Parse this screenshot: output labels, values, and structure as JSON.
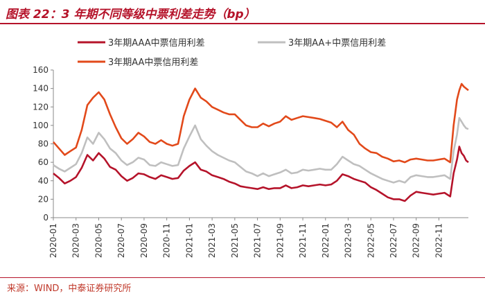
{
  "page": {
    "title": "图表 22：3 年期不同等级中票利差走势（bp）",
    "source": "来源：WIND，中泰证券研究所"
  },
  "colors": {
    "aaa": "#b5132a",
    "aa_plus": "#bfbfbf",
    "aa": "#e2491a",
    "accent": "#b5132a"
  },
  "chart_data": {
    "type": "line",
    "title": "3 年期不同等级中票利差走势（bp）",
    "xlabel": "",
    "ylabel": "",
    "ylim": [
      0,
      160
    ],
    "yticks": [
      0,
      20,
      40,
      60,
      80,
      100,
      120,
      140,
      160
    ],
    "xticks": [
      "2020-01",
      "2020-03",
      "2020-05",
      "2020-07",
      "2020-09",
      "2020-11",
      "2021-01",
      "2021-03",
      "2021-05",
      "2021-07",
      "2021-09",
      "2021-11",
      "2022-01",
      "2022-03",
      "2022-05",
      "2022-07",
      "2022-09",
      "2022-11"
    ],
    "xlim": [
      0,
      36.6
    ],
    "x_unit": "months since 2020-01",
    "legend": "top",
    "series": [
      {
        "name": "3年期AAA中票信用利差",
        "color_key": "aaa",
        "points": [
          [
            0,
            48
          ],
          [
            0.5,
            43
          ],
          [
            1,
            37
          ],
          [
            1.5,
            40
          ],
          [
            2,
            44
          ],
          [
            2.5,
            54
          ],
          [
            3,
            68
          ],
          [
            3.5,
            62
          ],
          [
            4,
            70
          ],
          [
            4.5,
            64
          ],
          [
            5,
            55
          ],
          [
            5.5,
            52
          ],
          [
            6,
            45
          ],
          [
            6.5,
            40
          ],
          [
            7,
            43
          ],
          [
            7.5,
            48
          ],
          [
            8,
            47
          ],
          [
            8.5,
            44
          ],
          [
            9,
            42
          ],
          [
            9.5,
            46
          ],
          [
            10,
            44
          ],
          [
            10.5,
            42
          ],
          [
            11,
            43
          ],
          [
            11.5,
            51
          ],
          [
            12,
            56
          ],
          [
            12.5,
            60
          ],
          [
            13,
            52
          ],
          [
            13.5,
            50
          ],
          [
            14,
            46
          ],
          [
            14.5,
            44
          ],
          [
            15,
            42
          ],
          [
            15.5,
            39
          ],
          [
            16,
            37
          ],
          [
            16.5,
            34
          ],
          [
            17,
            33
          ],
          [
            17.5,
            32
          ],
          [
            18,
            31
          ],
          [
            18.5,
            33
          ],
          [
            19,
            31
          ],
          [
            19.5,
            32
          ],
          [
            20,
            32
          ],
          [
            20.5,
            35
          ],
          [
            21,
            32
          ],
          [
            21.5,
            33
          ],
          [
            22,
            35
          ],
          [
            22.5,
            34
          ],
          [
            23,
            35
          ],
          [
            23.5,
            36
          ],
          [
            24,
            35
          ],
          [
            24.5,
            36
          ],
          [
            25,
            40
          ],
          [
            25.5,
            47
          ],
          [
            26,
            45
          ],
          [
            26.5,
            42
          ],
          [
            27,
            40
          ],
          [
            27.5,
            38
          ],
          [
            28,
            33
          ],
          [
            28.5,
            30
          ],
          [
            29,
            26
          ],
          [
            29.5,
            22
          ],
          [
            30,
            20
          ],
          [
            30.5,
            20
          ],
          [
            31,
            18
          ],
          [
            31.5,
            24
          ],
          [
            32,
            28
          ],
          [
            32.5,
            27
          ],
          [
            33,
            26
          ],
          [
            33.5,
            25
          ],
          [
            34,
            26
          ],
          [
            34.5,
            27
          ],
          [
            35,
            23
          ],
          [
            35.3,
            48
          ],
          [
            35.6,
            63
          ],
          [
            35.8,
            77
          ],
          [
            36,
            70
          ],
          [
            36.2,
            67
          ],
          [
            36.4,
            62
          ],
          [
            36.6,
            60
          ]
        ]
      },
      {
        "name": "3年期AA+中票信用利差",
        "color_key": "aa_plus",
        "points": [
          [
            0,
            57
          ],
          [
            0.5,
            53
          ],
          [
            1,
            50
          ],
          [
            1.5,
            54
          ],
          [
            2,
            58
          ],
          [
            2.5,
            70
          ],
          [
            3,
            87
          ],
          [
            3.5,
            80
          ],
          [
            4,
            92
          ],
          [
            4.5,
            85
          ],
          [
            5,
            75
          ],
          [
            5.5,
            70
          ],
          [
            6,
            62
          ],
          [
            6.5,
            57
          ],
          [
            7,
            60
          ],
          [
            7.5,
            65
          ],
          [
            8,
            63
          ],
          [
            8.5,
            57
          ],
          [
            9,
            56
          ],
          [
            9.5,
            60
          ],
          [
            10,
            58
          ],
          [
            10.5,
            56
          ],
          [
            11,
            57
          ],
          [
            11.5,
            75
          ],
          [
            12,
            88
          ],
          [
            12.5,
            100
          ],
          [
            13,
            85
          ],
          [
            13.5,
            78
          ],
          [
            14,
            72
          ],
          [
            14.5,
            68
          ],
          [
            15,
            65
          ],
          [
            15.5,
            62
          ],
          [
            16,
            60
          ],
          [
            16.5,
            55
          ],
          [
            17,
            50
          ],
          [
            17.5,
            48
          ],
          [
            18,
            45
          ],
          [
            18.5,
            48
          ],
          [
            19,
            45
          ],
          [
            19.5,
            47
          ],
          [
            20,
            49
          ],
          [
            20.5,
            52
          ],
          [
            21,
            48
          ],
          [
            21.5,
            49
          ],
          [
            22,
            52
          ],
          [
            22.5,
            51
          ],
          [
            23,
            52
          ],
          [
            23.5,
            53
          ],
          [
            24,
            52
          ],
          [
            24.5,
            52
          ],
          [
            25,
            58
          ],
          [
            25.5,
            66
          ],
          [
            26,
            62
          ],
          [
            26.5,
            58
          ],
          [
            27,
            56
          ],
          [
            27.5,
            52
          ],
          [
            28,
            48
          ],
          [
            28.5,
            45
          ],
          [
            29,
            42
          ],
          [
            29.5,
            40
          ],
          [
            30,
            38
          ],
          [
            30.5,
            40
          ],
          [
            31,
            38
          ],
          [
            31.5,
            44
          ],
          [
            32,
            46
          ],
          [
            32.5,
            45
          ],
          [
            33,
            44
          ],
          [
            33.5,
            44
          ],
          [
            34,
            45
          ],
          [
            34.5,
            46
          ],
          [
            35,
            42
          ],
          [
            35.3,
            72
          ],
          [
            35.6,
            90
          ],
          [
            35.8,
            108
          ],
          [
            36,
            104
          ],
          [
            36.2,
            100
          ],
          [
            36.4,
            97
          ],
          [
            36.6,
            96
          ]
        ]
      },
      {
        "name": "3年期AA中票信用利差",
        "color_key": "aa",
        "points": [
          [
            0,
            82
          ],
          [
            0.5,
            75
          ],
          [
            1,
            68
          ],
          [
            1.5,
            72
          ],
          [
            2,
            76
          ],
          [
            2.5,
            95
          ],
          [
            3,
            122
          ],
          [
            3.5,
            130
          ],
          [
            4,
            136
          ],
          [
            4.5,
            128
          ],
          [
            5,
            112
          ],
          [
            5.5,
            98
          ],
          [
            6,
            86
          ],
          [
            6.5,
            80
          ],
          [
            7,
            85
          ],
          [
            7.5,
            92
          ],
          [
            8,
            88
          ],
          [
            8.5,
            82
          ],
          [
            9,
            80
          ],
          [
            9.5,
            84
          ],
          [
            10,
            80
          ],
          [
            10.5,
            78
          ],
          [
            11,
            80
          ],
          [
            11.5,
            110
          ],
          [
            12,
            128
          ],
          [
            12.5,
            140
          ],
          [
            13,
            130
          ],
          [
            13.5,
            126
          ],
          [
            14,
            120
          ],
          [
            14.5,
            117
          ],
          [
            15,
            114
          ],
          [
            15.5,
            112
          ],
          [
            16,
            112
          ],
          [
            16.5,
            106
          ],
          [
            17,
            100
          ],
          [
            17.5,
            98
          ],
          [
            18,
            98
          ],
          [
            18.5,
            102
          ],
          [
            19,
            99
          ],
          [
            19.5,
            102
          ],
          [
            20,
            104
          ],
          [
            20.5,
            110
          ],
          [
            21,
            106
          ],
          [
            21.5,
            108
          ],
          [
            22,
            110
          ],
          [
            22.5,
            109
          ],
          [
            23,
            108
          ],
          [
            23.5,
            107
          ],
          [
            24,
            105
          ],
          [
            24.5,
            103
          ],
          [
            25,
            98
          ],
          [
            25.5,
            104
          ],
          [
            26,
            95
          ],
          [
            26.5,
            90
          ],
          [
            27,
            80
          ],
          [
            27.5,
            75
          ],
          [
            28,
            71
          ],
          [
            28.5,
            70
          ],
          [
            29,
            66
          ],
          [
            29.5,
            64
          ],
          [
            30,
            61
          ],
          [
            30.5,
            62
          ],
          [
            31,
            60
          ],
          [
            31.5,
            63
          ],
          [
            32,
            64
          ],
          [
            32.5,
            63
          ],
          [
            33,
            62
          ],
          [
            33.5,
            62
          ],
          [
            34,
            63
          ],
          [
            34.5,
            64
          ],
          [
            35,
            60
          ],
          [
            35.3,
            100
          ],
          [
            35.6,
            128
          ],
          [
            35.8,
            138
          ],
          [
            36,
            145
          ],
          [
            36.2,
            142
          ],
          [
            36.4,
            140
          ],
          [
            36.6,
            138
          ]
        ]
      }
    ]
  }
}
